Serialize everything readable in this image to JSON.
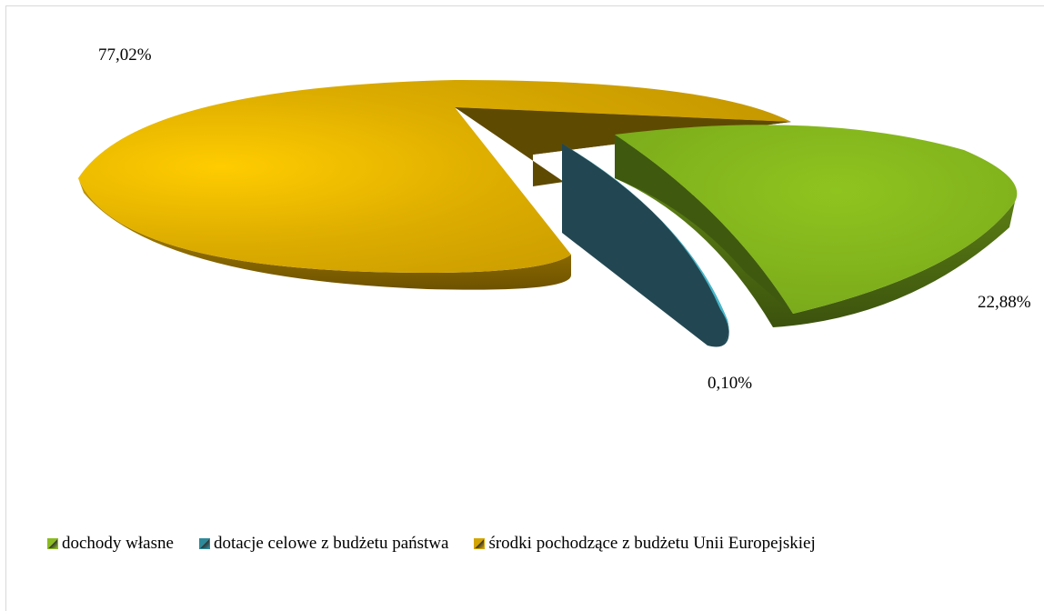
{
  "chart_data": {
    "type": "pie",
    "title": "",
    "series": [
      {
        "categories": [
          "dochody własne",
          "dotacje celowe z budżetu państwa",
          "środki pochodzące z budżetu Unii Europejskiej"
        ],
        "values": [
          22.88,
          0.1,
          77.02
        ]
      }
    ],
    "data_labels": [
      "22,88%",
      "0,10%",
      "77,02%"
    ],
    "legend": {
      "position": "bottom",
      "entries": [
        "dochody własne",
        "dotacje celowe z budżetu państwa",
        "środki pochodzące z budżetu Unii Europejskiej"
      ]
    },
    "colors": [
      "#8bbb22",
      "#2e8a9a",
      "#d4a500"
    ],
    "style": "3d-exploded"
  }
}
